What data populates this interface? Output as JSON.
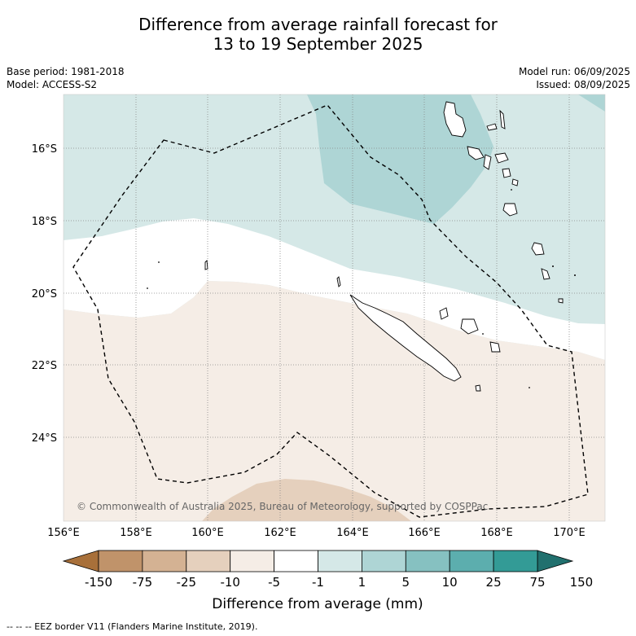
{
  "title": {
    "line1": "Difference from average rainfall forecast for",
    "line2": "13 to 19 September 2025"
  },
  "meta": {
    "base_period": "Base period: 1981-2018",
    "model": "Model: ACCESS-S2",
    "model_run": "Model run: 06/09/2025",
    "issued": "Issued: 08/09/2025"
  },
  "map": {
    "lat_labels": [
      "16°S",
      "18°S",
      "20°S",
      "22°S",
      "24°S"
    ],
    "lon_labels": [
      "156°E",
      "158°E",
      "160°E",
      "162°E",
      "164°E",
      "166°E",
      "168°E",
      "170°E"
    ],
    "copyright": "© Commonwealth of Australia 2025, Bureau of Meteorology, supported by COSPPac"
  },
  "colorbar": {
    "title": "Difference from average (mm)",
    "tick_labels": [
      "-150",
      "-75",
      "-25",
      "-10",
      "-5",
      "-1",
      "1",
      "5",
      "10",
      "25",
      "75",
      "150"
    ],
    "colors": [
      "#a8703a",
      "#c0936a",
      "#d4b293",
      "#e5d0bd",
      "#f5ede6",
      "#ffffff",
      "#d5e8e7",
      "#aed5d5",
      "#86c1c1",
      "#5caeae",
      "#339b96",
      "#21706e"
    ]
  },
  "footnote": "-- -- -- EEZ border V11 (Flanders Marine Institute, 2019)."
}
